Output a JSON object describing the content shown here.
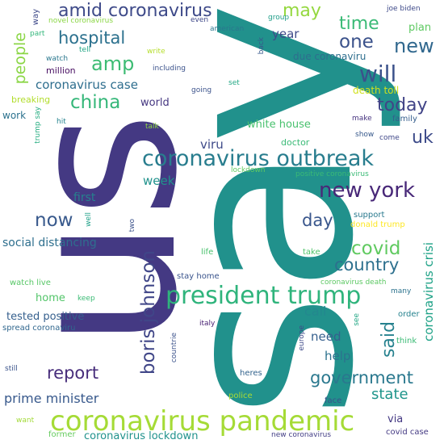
{
  "words": [
    {
      "text": "say",
      "color": "#21918c"
    },
    {
      "text": "us",
      "color": "#443983"
    },
    {
      "text": "coronavirus pandemic",
      "color": "#a5db36"
    },
    {
      "text": "coronavirus outbreak",
      "color": "#287d8e"
    },
    {
      "text": "president trump",
      "color": "#2fb47c"
    },
    {
      "text": "amid coronavirus",
      "color": "#3e4a89"
    },
    {
      "text": "new york",
      "color": "#482878"
    },
    {
      "text": "government",
      "color": "#2a788e"
    },
    {
      "text": "boris johnson",
      "color": "#404688"
    },
    {
      "text": "will",
      "color": "#3b528b"
    },
    {
      "text": "new",
      "color": "#31688e"
    },
    {
      "text": "one",
      "color": "#3b528b"
    },
    {
      "text": "today",
      "color": "#414487"
    },
    {
      "text": "china",
      "color": "#35b779"
    },
    {
      "text": "amp",
      "color": "#3dbc74"
    },
    {
      "text": "hospital",
      "color": "#2c718e"
    },
    {
      "text": "time",
      "color": "#3aba76"
    },
    {
      "text": "may",
      "color": "#95d840"
    },
    {
      "text": "now",
      "color": "#38598c"
    },
    {
      "text": "covid",
      "color": "#60ca60"
    },
    {
      "text": "country",
      "color": "#2d708e"
    },
    {
      "text": "report",
      "color": "#472d7b"
    },
    {
      "text": "said",
      "color": "#26818e"
    },
    {
      "text": "state",
      "color": "#1f958b"
    },
    {
      "text": "people",
      "color": "#8bd646"
    },
    {
      "text": "uk",
      "color": "#3e4c8a"
    },
    {
      "text": "day",
      "color": "#39568c"
    },
    {
      "text": "prime minister",
      "color": "#38598c"
    },
    {
      "text": "social distancing",
      "color": "#2e6f8e"
    },
    {
      "text": "coronavirus case",
      "color": "#2e6e8e"
    },
    {
      "text": "coronavirus crisi",
      "color": "#1fa287"
    },
    {
      "text": "help",
      "color": "#2c728e"
    },
    {
      "text": "call",
      "color": "#23888e"
    },
    {
      "text": "need",
      "color": "#355f8d"
    },
    {
      "text": "tested positive",
      "color": "#345f8d"
    },
    {
      "text": "week",
      "color": "#20928c"
    },
    {
      "text": "year",
      "color": "#3e4a89"
    },
    {
      "text": "first",
      "color": "#26818e"
    },
    {
      "text": "home",
      "color": "#52c569"
    },
    {
      "text": "viru",
      "color": "#3e4a89"
    },
    {
      "text": "white house",
      "color": "#48c16e"
    },
    {
      "text": "due coronaviru",
      "color": "#2e6e8e"
    },
    {
      "text": "world",
      "color": "#453781"
    },
    {
      "text": "death toll",
      "color": "#d0e11c"
    },
    {
      "text": "coronavirus lockdown",
      "color": "#20928c"
    },
    {
      "text": "via",
      "color": "#443983"
    },
    {
      "text": "plan",
      "color": "#5ec962"
    },
    {
      "text": "work",
      "color": "#2c728e"
    },
    {
      "text": "doctor",
      "color": "#3aba76"
    },
    {
      "text": "many",
      "color": "#2c738e"
    },
    {
      "text": "family",
      "color": "#355e8d"
    },
    {
      "text": "joe biden",
      "color": "#3e4a89"
    },
    {
      "text": "group",
      "color": "#1f9e89"
    },
    {
      "text": "even",
      "color": "#3f4889"
    },
    {
      "text": "american",
      "color": "#2a778e"
    },
    {
      "text": "novel coronavirus",
      "color": "#8bd646"
    },
    {
      "text": "watch",
      "color": "#2a788e"
    },
    {
      "text": "million",
      "color": "#470e61"
    },
    {
      "text": "tell",
      "color": "#21a685"
    },
    {
      "text": "write",
      "color": "#b5de2b"
    },
    {
      "text": "including",
      "color": "#3b528b"
    },
    {
      "text": "part",
      "color": "#32b67a"
    },
    {
      "text": "way",
      "color": "#3e4989"
    },
    {
      "text": "breaking",
      "color": "#b2dd2d"
    },
    {
      "text": "back",
      "color": "#38598c"
    },
    {
      "text": "going",
      "color": "#3b528b"
    },
    {
      "text": "set",
      "color": "#22a884"
    },
    {
      "text": "make",
      "color": "#46337f"
    },
    {
      "text": "show",
      "color": "#38598c"
    },
    {
      "text": "come",
      "color": "#3f4788"
    },
    {
      "text": "hit",
      "color": "#25838e"
    },
    {
      "text": "talk",
      "color": "#8fd744"
    },
    {
      "text": "trump say",
      "color": "#26ad81"
    },
    {
      "text": "lockdown",
      "color": "#63cb5f"
    },
    {
      "text": "positive coronavirus",
      "color": "#3aba76"
    },
    {
      "text": "support",
      "color": "#29798e"
    },
    {
      "text": "donald trump",
      "color": "#fde725"
    },
    {
      "text": "two",
      "color": "#3b528b"
    },
    {
      "text": "well",
      "color": "#1fa088"
    },
    {
      "text": "life",
      "color": "#4ac16d"
    },
    {
      "text": "take",
      "color": "#50c46a"
    },
    {
      "text": "stay home",
      "color": "#3a548c"
    },
    {
      "text": "watch live",
      "color": "#57c766"
    },
    {
      "text": "keep",
      "color": "#3bbb75"
    },
    {
      "text": "coronavirus death",
      "color": "#5cc863"
    },
    {
      "text": "spread coronaviru",
      "color": "#31678e"
    },
    {
      "text": "order",
      "color": "#26828e"
    },
    {
      "text": "think",
      "color": "#3bbb75"
    },
    {
      "text": "see",
      "color": "#22a785"
    },
    {
      "text": "italy",
      "color": "#482173"
    },
    {
      "text": "europe",
      "color": "#3e4a89"
    },
    {
      "text": "countrie",
      "color": "#3b528b"
    },
    {
      "text": "still",
      "color": "#3a538b"
    },
    {
      "text": "heres",
      "color": "#33638d"
    },
    {
      "text": "police",
      "color": "#a8db34"
    },
    {
      "text": "face",
      "color": "#3b528b"
    },
    {
      "text": "want",
      "color": "#a2da37"
    },
    {
      "text": "former",
      "color": "#65cb5e"
    },
    {
      "text": "new coronavirus",
      "color": "#433e85"
    },
    {
      "text": "covid case",
      "color": "#443a83"
    }
  ]
}
